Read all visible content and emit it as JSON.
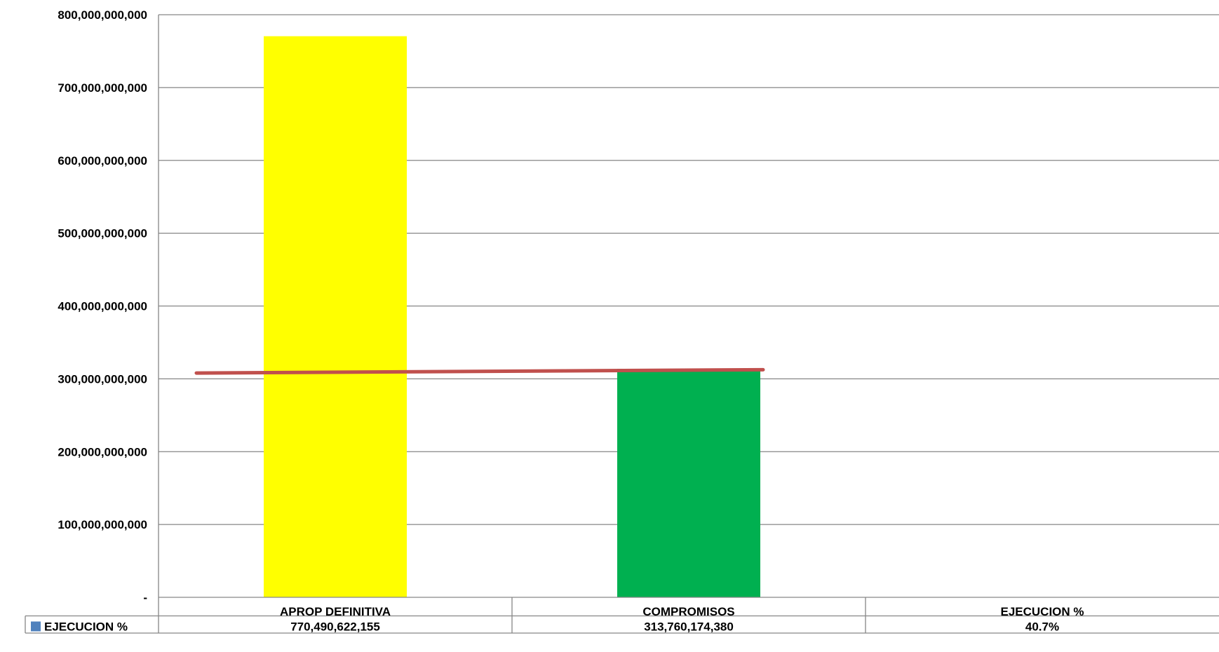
{
  "chart_data": {
    "type": "bar",
    "categories": [
      "APROP DEFINITIVA",
      "COMPROMISOS",
      "EJECUCION  %"
    ],
    "series": [
      {
        "name": "EJECUCION  %",
        "values": [
          770490622155,
          313760174380,
          0.407
        ],
        "value_labels": [
          "770,490,622,155",
          "313,760,174,380",
          "40.7%"
        ]
      }
    ],
    "bar_colors": [
      "#FFFF00",
      "#00B050",
      "#4F81BD"
    ],
    "trend_line": {
      "color": "#C0504D",
      "from": 308000000000,
      "to": 312500000000
    },
    "yticks": [
      "-",
      "100,000,000,000",
      "200,000,000,000",
      "300,000,000,000",
      "400,000,000,000",
      "500,000,000,000",
      "600,000,000,000",
      "700,000,000,000",
      "800,000,000,000"
    ],
    "ylim": [
      0,
      800000000000
    ],
    "grid": true,
    "legend": "data-table",
    "legend_key_color": "#4F81BD",
    "title": "",
    "xlabel": "",
    "ylabel": ""
  }
}
